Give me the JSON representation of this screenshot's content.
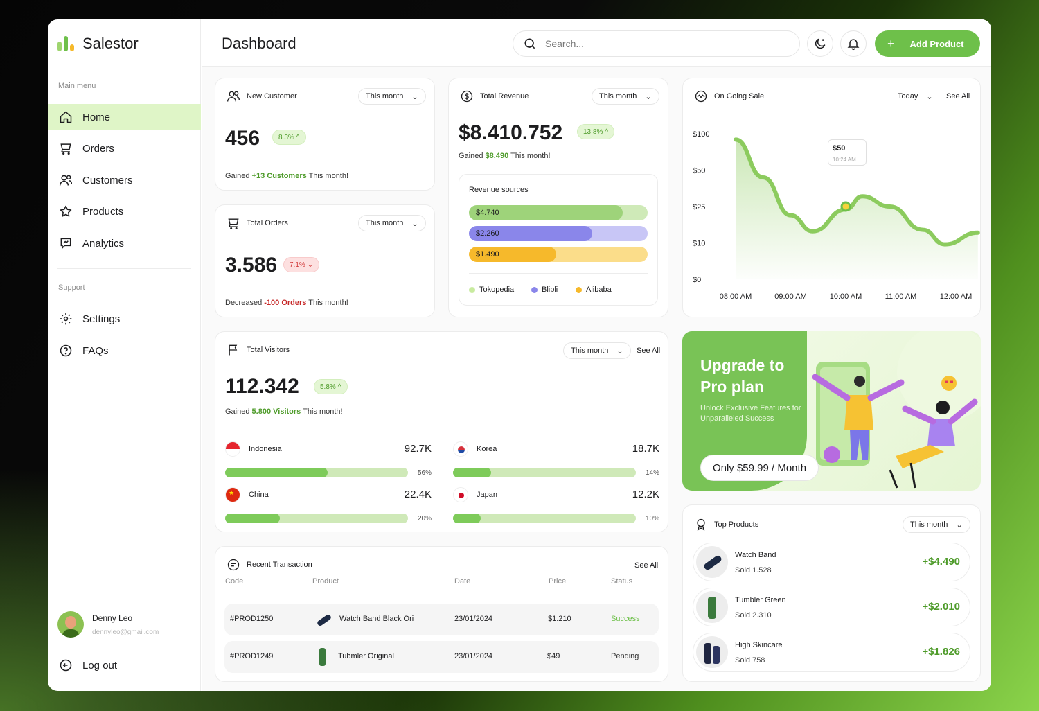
{
  "app": {
    "name": "Salestor"
  },
  "sidebar": {
    "main_menu_label": "Main menu",
    "items": [
      {
        "label": "Home",
        "icon": "home-icon",
        "active": true
      },
      {
        "label": "Orders",
        "icon": "cart-icon"
      },
      {
        "label": "Customers",
        "icon": "users-icon"
      },
      {
        "label": "Products",
        "icon": "products-icon"
      },
      {
        "label": "Analytics",
        "icon": "analytics-icon"
      }
    ],
    "support_label": "Support",
    "support_items": [
      {
        "label": "Settings",
        "icon": "gear-icon"
      },
      {
        "label": "FAQs",
        "icon": "help-icon"
      }
    ],
    "user": {
      "name": "Denny Leo",
      "email": "dennyleo@gmail.com"
    },
    "logout_label": "Log out"
  },
  "header": {
    "title": "Dashboard",
    "search_placeholder": "Search...",
    "add_product_label": "Add Product"
  },
  "new_customer": {
    "title": "New Customer",
    "period": "This month",
    "value": "456",
    "change": "8.3%",
    "gained_prefix": "Gained",
    "gained_value": "+13 Customers",
    "gained_suffix": "This month!"
  },
  "total_orders": {
    "title": "Total Orders",
    "period": "This month",
    "value": "3.586",
    "change": "7.1%",
    "prefix": "Decreased",
    "delta": "-100 Orders",
    "suffix": "This month!"
  },
  "total_revenue": {
    "title": "Total Revenue",
    "period": "This month",
    "value": "$8.410.752",
    "change": "13.8%",
    "gained_prefix": "Gained",
    "gained_value": "$8.490",
    "gained_suffix": "This month!",
    "sources_title": "Revenue sources",
    "sources": [
      {
        "label": "$4.740",
        "name": "Tokopedia",
        "color": "#9ed37a",
        "track": "#cfeab8",
        "fill": 0.86
      },
      {
        "label": "$2.260",
        "name": "Blibli",
        "color": "#8a86ea",
        "track": "#c8c6f6",
        "fill": 0.69
      },
      {
        "label": "$1.490",
        "name": "Alibaba",
        "color": "#f6b92b",
        "track": "#fbdd8a",
        "fill": 0.49
      }
    ]
  },
  "ongoing_sale": {
    "title": "On Going Sale",
    "period": "Today",
    "see_all": "See All",
    "tooltip_value": "$50",
    "tooltip_time": "10:24 AM"
  },
  "chart_data": {
    "type": "area",
    "x": [
      "08:00 AM",
      "09:00 AM",
      "10:00 AM",
      "11:00 AM",
      "12:00 AM"
    ],
    "y_ticks": [
      "$100",
      "$50",
      "$25",
      "$10",
      "$0"
    ],
    "points": [
      {
        "x": 0.0,
        "y": 96
      },
      {
        "x": 0.5,
        "y": 70
      },
      {
        "x": 1.0,
        "y": 44
      },
      {
        "x": 1.4,
        "y": 33
      },
      {
        "x": 2.0,
        "y": 48
      },
      {
        "x": 2.3,
        "y": 57
      },
      {
        "x": 2.8,
        "y": 50
      },
      {
        "x": 3.4,
        "y": 34
      },
      {
        "x": 3.8,
        "y": 24
      },
      {
        "x": 4.4,
        "y": 32
      }
    ],
    "highlight": {
      "x": 2.0,
      "y": 50
    },
    "color": "#8ccb5e"
  },
  "visitors": {
    "title": "Total Visitors",
    "period": "This month",
    "see_all": "See All",
    "value": "112.342",
    "change": "5.8%",
    "gained_prefix": "Gained",
    "gained_value": "5.800 Visitors",
    "gained_suffix": "This month!",
    "countries": [
      {
        "name": "Indonesia",
        "value": "92.7K",
        "pct": "56%",
        "fill": 0.56,
        "flag": "indonesia-flag-icon"
      },
      {
        "name": "Korea",
        "value": "18.7K",
        "pct": "14%",
        "fill": 0.21,
        "flag": "korea-flag-icon"
      },
      {
        "name": "China",
        "value": "22.4K",
        "pct": "20%",
        "fill": 0.3,
        "flag": "china-flag-icon"
      },
      {
        "name": "Japan",
        "value": "12.2K",
        "pct": "10%",
        "fill": 0.15,
        "flag": "japan-flag-icon"
      }
    ]
  },
  "transactions": {
    "title": "Recent Transaction",
    "see_all": "See All",
    "columns": [
      "Code",
      "Product",
      "Date",
      "Price",
      "Status"
    ],
    "rows": [
      {
        "code": "#PROD1250",
        "product": "Watch Band Black Ori",
        "date": "23/01/2024",
        "price": "$1.210",
        "status": "Success",
        "status_color": "#6ec04a"
      },
      {
        "code": "#PROD1249",
        "product": "Tubmler Original",
        "date": "23/01/2024",
        "price": "$49",
        "status": "Pending",
        "status_color": "#333333"
      }
    ]
  },
  "promo": {
    "title": "Upgrade to Pro plan",
    "desc": "Unlock Exclusive Features for Unparalleled Success",
    "price": "Only $59.99 / Month"
  },
  "top_products": {
    "title": "Top Products",
    "period": "This month",
    "items": [
      {
        "name": "Watch Band",
        "sold": "Sold 1.528",
        "value": "+$4.490"
      },
      {
        "name": "Tumbler Green",
        "sold": "Sold 2.310",
        "value": "+$2.010"
      },
      {
        "name": "High Skincare",
        "sold": "Sold 758",
        "value": "+$1.826"
      }
    ]
  },
  "colors": {
    "accent": "#6ec04a",
    "accent_light": "#dff5c7",
    "negative": "#d23b3b"
  }
}
